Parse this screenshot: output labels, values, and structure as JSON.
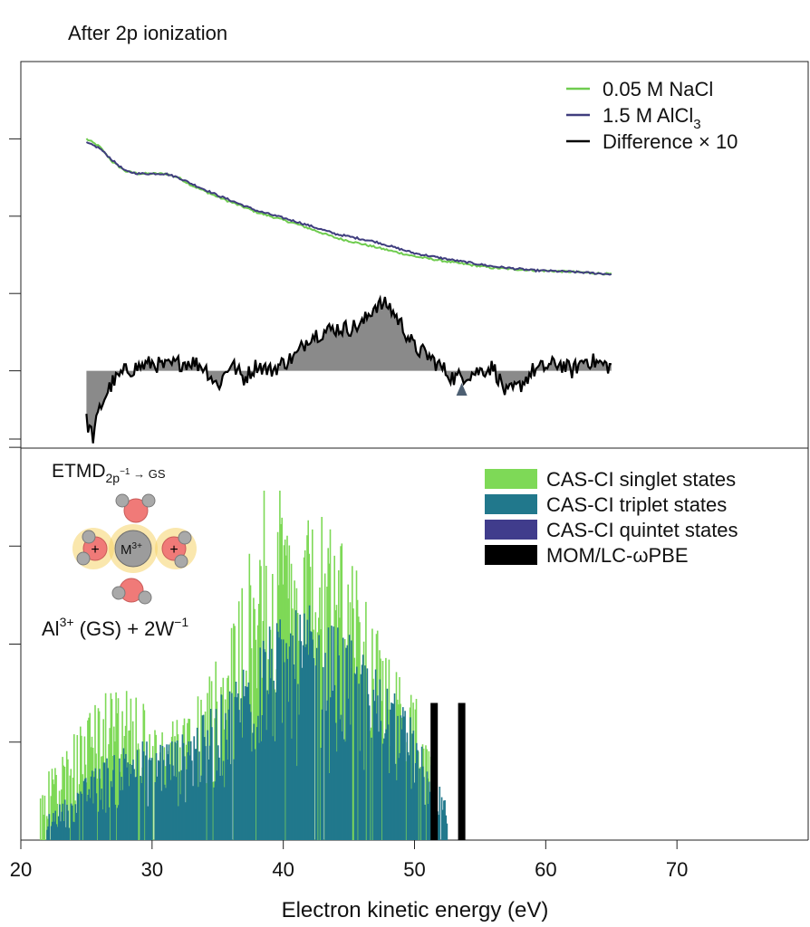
{
  "colors": {
    "singlet": "#7ed957",
    "triplet": "#21788c",
    "quintet": "#403c8c",
    "nacl": "#6fcc4f",
    "alcl3": "#3f3d7e",
    "difference": "#000000",
    "fill": "#8a8a8a",
    "mom": "#000000",
    "water_o": "#f07a78",
    "water_h": "#a9a9a9",
    "ion": "#9c9c9c",
    "glow": "#f6d36a",
    "arrow": "#4d5f72"
  },
  "chart_data": [
    {
      "type": "line",
      "title": "After 2p ionization",
      "xlim": [
        20,
        80
      ],
      "x_range": [
        25,
        65
      ],
      "ylim": [
        -1,
        4
      ],
      "baseline": 0,
      "legend_position": "top-right",
      "series": [
        {
          "name": "0.05 M NaCl",
          "key": "nacl",
          "x": [
            25,
            26,
            27,
            28,
            29,
            30,
            31,
            32,
            33,
            35,
            38,
            41,
            44,
            47,
            50,
            53,
            56,
            59,
            62,
            65
          ],
          "y": [
            3.0,
            2.9,
            2.7,
            2.58,
            2.55,
            2.55,
            2.55,
            2.5,
            2.4,
            2.25,
            2.05,
            1.9,
            1.72,
            1.6,
            1.48,
            1.4,
            1.33,
            1.3,
            1.28,
            1.25
          ]
        },
        {
          "name_parts": [
            "1.5 M AlCl",
            "3"
          ],
          "key": "alcl3",
          "x": [
            25,
            26,
            27,
            28,
            29,
            30,
            31,
            32,
            33,
            35,
            38,
            41,
            44,
            47,
            50,
            53,
            56,
            59,
            62,
            65
          ],
          "y": [
            2.95,
            2.88,
            2.72,
            2.58,
            2.55,
            2.55,
            2.55,
            2.5,
            2.42,
            2.27,
            2.07,
            1.93,
            1.77,
            1.67,
            1.52,
            1.43,
            1.35,
            1.3,
            1.28,
            1.25
          ]
        },
        {
          "name": "Difference × 10",
          "key": "difference",
          "x": [
            25,
            25.5,
            26,
            26.5,
            27,
            28,
            29,
            30,
            31,
            32,
            33,
            34,
            35,
            36,
            37,
            38,
            39,
            40,
            41,
            42,
            43,
            44,
            45,
            46,
            47,
            48,
            49,
            50,
            51,
            52,
            53,
            54,
            55,
            56,
            57,
            58,
            59,
            60,
            61,
            62,
            63,
            64,
            65
          ],
          "y": [
            -0.65,
            -0.85,
            -0.5,
            -0.3,
            -0.15,
            0.0,
            0.05,
            0.1,
            0.05,
            0.1,
            0.12,
            0.05,
            -0.2,
            0.1,
            -0.1,
            0.08,
            0.0,
            0.1,
            0.2,
            0.45,
            0.5,
            0.55,
            0.55,
            0.6,
            0.85,
            0.85,
            0.6,
            0.3,
            0.2,
            0.05,
            -0.1,
            -0.05,
            0.0,
            0.05,
            -0.3,
            -0.2,
            0.0,
            0.05,
            0.1,
            0.0,
            0.15,
            0.1,
            0.05
          ]
        }
      ]
    },
    {
      "type": "bar",
      "title": "",
      "xlabel": "Electron kinetic energy (eV)",
      "xticks": [
        20,
        30,
        40,
        50,
        60,
        70
      ],
      "xlim": [
        20,
        80
      ],
      "ylim": [
        0,
        4
      ],
      "legend_position": "top-right",
      "annotation": {
        "label_main": "ETMD",
        "label_sub": "2p",
        "label_sup": "−1",
        "label_tail": " → GS",
        "ion_label": "M",
        "ion_sup": "3+",
        "charge": "+",
        "product_main": "Al",
        "product_sup1": "3+",
        "product_mid": " (GS) + 2W",
        "product_sup2": "−1"
      },
      "arrow": {
        "x": 53.6,
        "y_from": 1.4,
        "y_to_top": -0.18
      },
      "mom_lines": {
        "name": "MOM/LC-ωPBE",
        "key": "mom",
        "x": [
          51.5,
          53.6
        ],
        "height": 1.4
      },
      "series": [
        {
          "name": "CAS-CI singlet states",
          "key": "singlet",
          "envelope": {
            "x": [
              21.5,
              23,
              25,
              27,
              29,
              31,
              33,
              35,
              37,
              39,
              41,
              43,
              45,
              47,
              49,
              50.5,
              51.5
            ],
            "y": [
              0.6,
              0.9,
              1.3,
              1.6,
              1.5,
              1.2,
              1.4,
              1.9,
              2.7,
              3.9,
              3.0,
              3.6,
              3.0,
              2.2,
              1.7,
              1.4,
              0.7
            ]
          }
        },
        {
          "name": "CAS-CI triplet states",
          "key": "triplet",
          "envelope": {
            "x": [
              22,
              24,
              26,
              28,
              30,
              32,
              34,
              36,
              38,
              40,
              42,
              44,
              46,
              48,
              50,
              51.5,
              52.5
            ],
            "y": [
              0.25,
              0.5,
              0.8,
              1.0,
              1.05,
              1.05,
              1.3,
              1.6,
              2.1,
              2.3,
              2.4,
              2.2,
              2.0,
              1.6,
              1.2,
              0.7,
              0.35
            ]
          }
        },
        {
          "name": "CAS-CI quintet states",
          "key": "quintet"
        }
      ]
    }
  ]
}
